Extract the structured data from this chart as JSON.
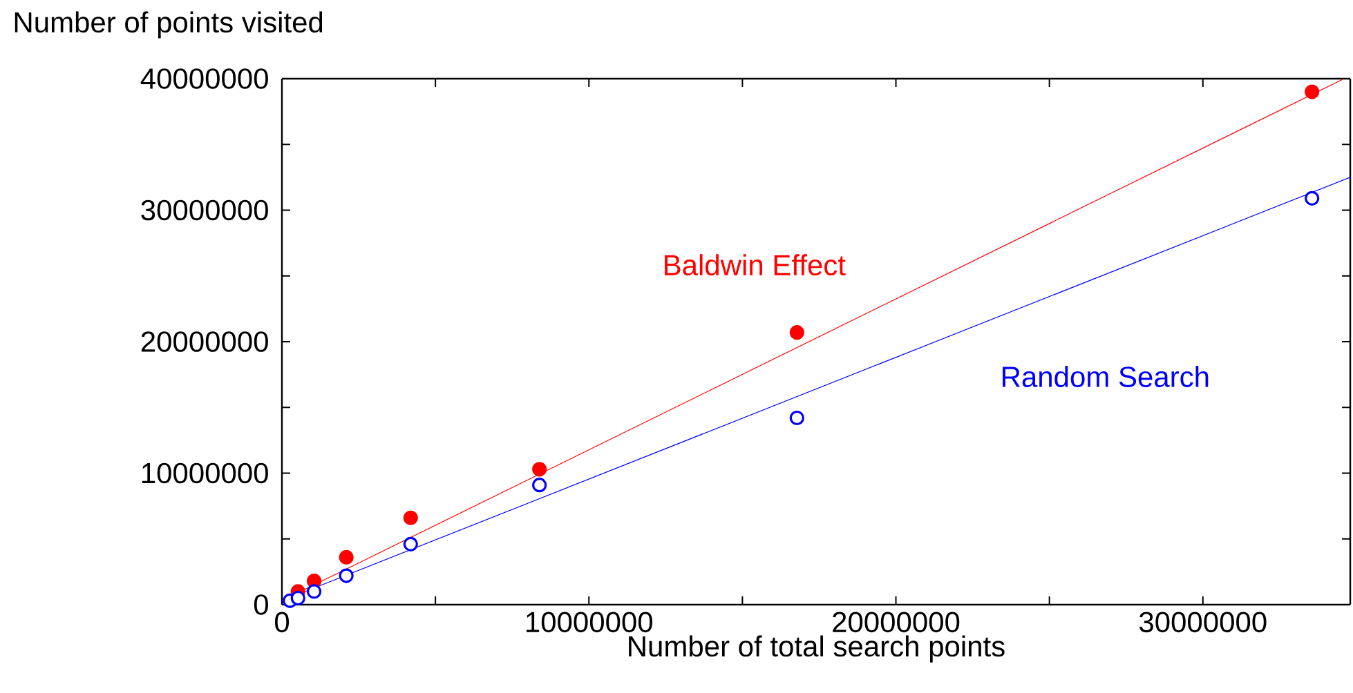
{
  "chart_data": {
    "type": "scatter",
    "xlabel": "Number of total search points",
    "ylabel": "Number of points visited",
    "xlim": [
      0,
      34800000
    ],
    "ylim": [
      0,
      40000000
    ],
    "xticks": [
      0,
      {
        "value": 5000000,
        "label": null
      },
      10000000,
      {
        "value": 15000000,
        "label": null
      },
      20000000,
      {
        "value": 25000000,
        "label": null
      },
      30000000
    ],
    "yticks": [
      0,
      {
        "value": 5000000,
        "label": null
      },
      10000000,
      {
        "value": 15000000,
        "label": null
      },
      20000000,
      {
        "value": 25000000,
        "label": null
      },
      30000000,
      {
        "value": 35000000,
        "label": null
      },
      40000000
    ],
    "grid": false,
    "series": [
      {
        "name": "Baldwin Effect",
        "marker": "circle",
        "color": "#ff0000",
        "x": [
          524288,
          1048576,
          2097152,
          4194304,
          8388608,
          16777216,
          33554432
        ],
        "values": [
          1000000,
          1800000,
          3600000,
          6600000,
          10300000,
          20700000,
          39000000
        ]
      },
      {
        "name": "Random Search",
        "marker": "circle",
        "color": "#0000ff",
        "x": [
          262144,
          524288,
          1048576,
          2097152,
          4194304,
          8388608,
          16777216,
          33554432
        ],
        "values": [
          300000,
          500000,
          1000000,
          2200000,
          4600000,
          9100000,
          14200000,
          30900000
        ]
      },
      {
        "type": "line",
        "marker": "none",
        "color": "#ff0000",
        "x": [
          0,
          34600000
        ],
        "values": [
          300000,
          40000000
        ]
      },
      {
        "type": "line",
        "marker": "none",
        "color": "#0000ff",
        "x": [
          0,
          34800000
        ],
        "values": [
          300000,
          32500000
        ]
      }
    ]
  }
}
